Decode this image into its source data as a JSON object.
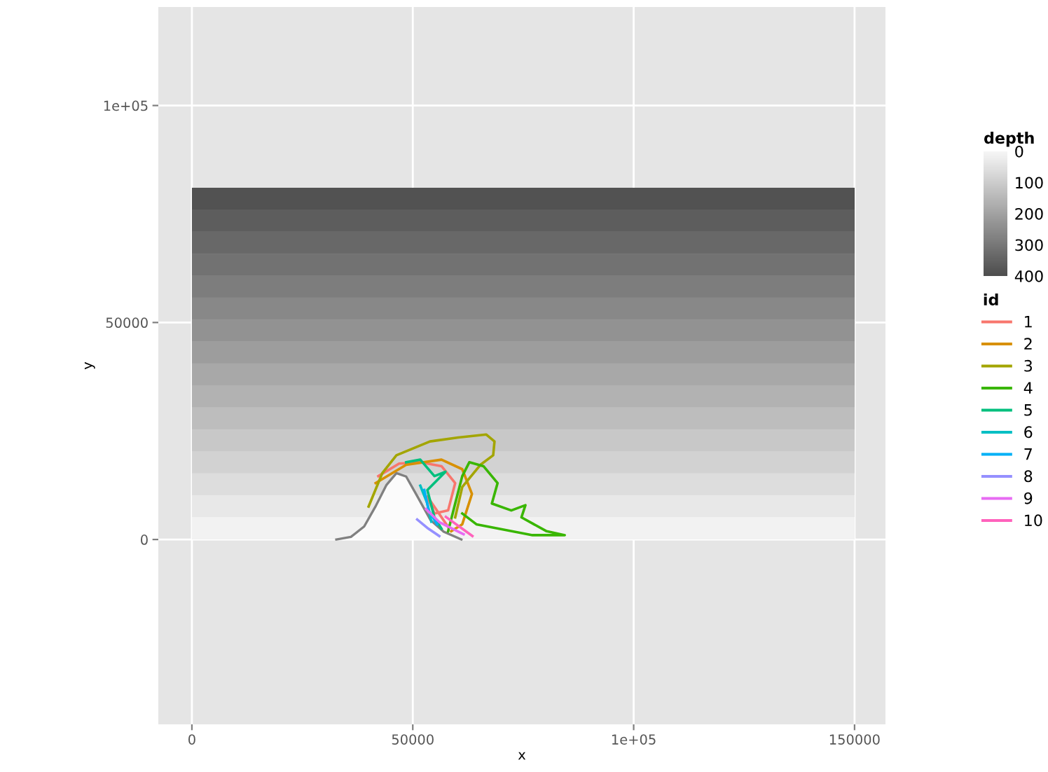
{
  "chart_data": [
    {
      "type": "heatmap",
      "clabel": "depth",
      "clim": [
        0,
        400
      ],
      "cticks": [
        0,
        100,
        200,
        300,
        400
      ],
      "categories": [
        null
      ],
      "y_categories": [
        null,
        null,
        null,
        null,
        null,
        null,
        null,
        null,
        null,
        null,
        null,
        null,
        null,
        null,
        null,
        null
      ],
      "cells": [
        [
          387
        ],
        [
          362
        ],
        [
          337
        ],
        [
          312
        ],
        [
          287
        ],
        [
          262
        ],
        [
          237
        ],
        [
          212
        ],
        [
          187
        ],
        [
          162
        ],
        [
          137
        ],
        [
          112
        ],
        [
          87
        ],
        [
          62
        ],
        [
          37
        ],
        [
          12
        ]
      ]
    },
    {
      "type": "line",
      "xlabel": "x",
      "ylabel": "y",
      "legend_title": "id",
      "xlim": [
        -7600,
        157000
      ],
      "ylim": [
        -42600,
        122700
      ],
      "xticks": [
        0,
        50000,
        {
          "value": 100000,
          "label": "1e+05"
        },
        150000
      ],
      "yticks": [
        0,
        50000,
        {
          "value": 100000,
          "label": "1e+05"
        }
      ],
      "grid": true,
      "legend": "right",
      "series": [
        {
          "type": "area",
          "color": "#fbfbfb",
          "x": [
            32700,
            36000,
            39000,
            41500,
            44000,
            46300,
            48500,
            51000,
            54000,
            57000,
            61000
          ],
          "values": [
            0,
            600,
            3000,
            7500,
            12500,
            15300,
            14500,
            10000,
            4500,
            1800,
            0
          ]
        },
        {
          "name": "1",
          "color": "#f8766d",
          "x": [
            42200,
            46900,
            51700,
            56500,
            59600,
            58000,
            54900,
            53300,
            58000
          ],
          "values": [
            14600,
            17500,
            17800,
            16900,
            13000,
            6700,
            6000,
            9900,
            2900
          ]
        },
        {
          "name": "2",
          "color": "#d89000",
          "x": [
            41600,
            48500,
            56500,
            61200,
            63400,
            61200,
            58700
          ],
          "values": [
            13000,
            17200,
            18400,
            16200,
            10500,
            3500,
            1900
          ]
        },
        {
          "name": "3",
          "color": "#a3a500",
          "x": [
            40000,
            43100,
            46300,
            53900,
            60300,
            66600,
            68500,
            68200,
            65300,
            61200,
            59600
          ],
          "values": [
            7600,
            15300,
            19400,
            22600,
            23500,
            24200,
            22600,
            19400,
            17200,
            12100,
            5100
          ]
        },
        {
          "name": "4",
          "color": "#39b600",
          "x": [
            58000,
            59600,
            61200,
            62800,
            66000,
            69200,
            67900,
            72300,
            75500,
            74600,
            80300,
            84400,
            77100,
            64400,
            61200
          ],
          "values": [
            1900,
            8300,
            14600,
            17800,
            16900,
            13000,
            8300,
            6700,
            7900,
            5100,
            1900,
            1000,
            1000,
            3500,
            6000
          ]
        },
        {
          "name": "5",
          "color": "#00bf7d",
          "x": [
            48500,
            51700,
            54900,
            57400,
            53300,
            54900,
            56500
          ],
          "values": [
            17800,
            18400,
            14600,
            15600,
            11400,
            5100,
            2500
          ]
        },
        {
          "name": "6",
          "color": "#00bfc4",
          "x": [
            51700,
            53300,
            54200
          ],
          "values": [
            12400,
            8300,
            4100
          ]
        },
        {
          "name": "7",
          "color": "#00b0f6",
          "x": [
            52600,
            53600,
            55500
          ],
          "values": [
            11400,
            6700,
            3500
          ]
        },
        {
          "name": "8",
          "color": "#9590ff",
          "x": [
            51000,
            53500,
            56000
          ],
          "values": [
            4600,
            2500,
            800
          ]
        },
        {
          "name": "9",
          "color": "#e76bf3",
          "x": [
            53000,
            56000,
            59500,
            61500
          ],
          "values": [
            7000,
            4000,
            2200,
            1200
          ]
        },
        {
          "name": "10",
          "color": "#ff62bc",
          "x": [
            57500,
            60500,
            63500
          ],
          "values": [
            5200,
            3000,
            800
          ]
        }
      ]
    }
  ]
}
